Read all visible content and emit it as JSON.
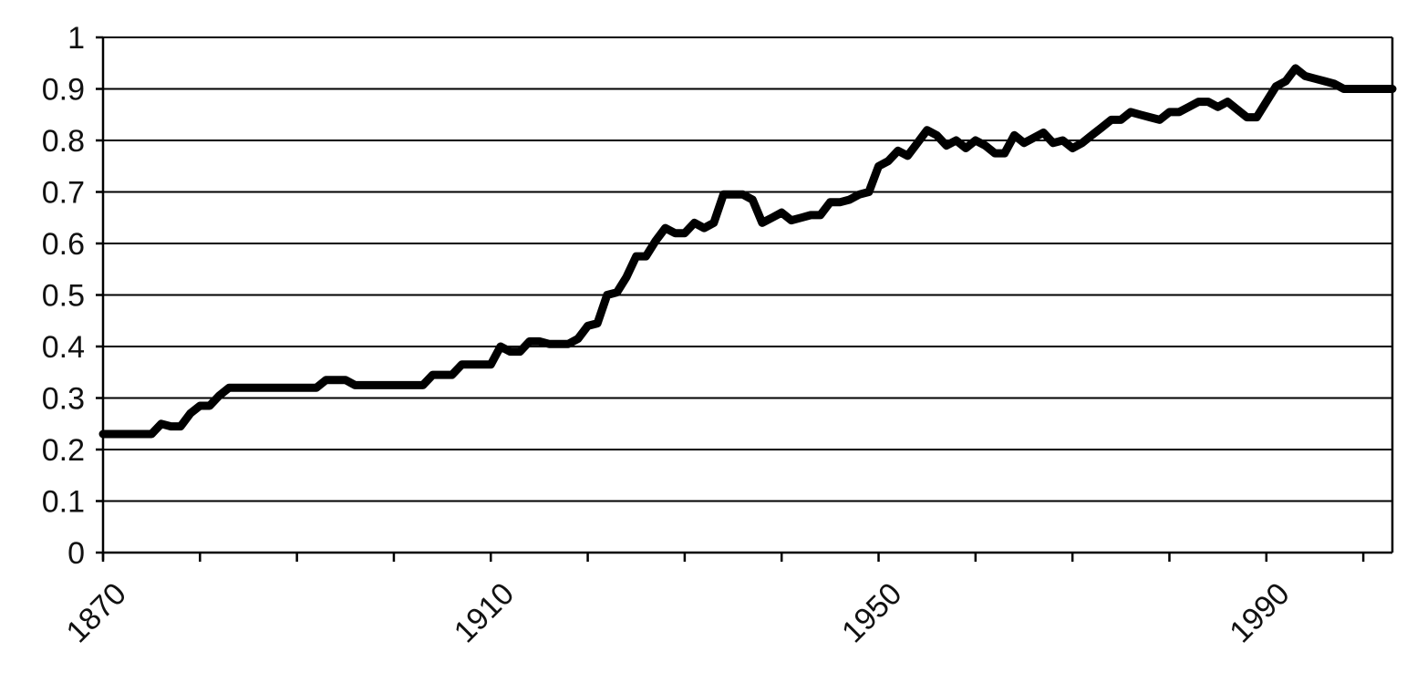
{
  "chart_data": {
    "type": "line",
    "title": "",
    "xlabel": "",
    "ylabel": "",
    "xlim": [
      1870,
      2003
    ],
    "ylim": [
      0,
      1
    ],
    "y_ticks": [
      0,
      0.1,
      0.2,
      0.3,
      0.4,
      0.5,
      0.6,
      0.7,
      0.8,
      0.9,
      1
    ],
    "y_tick_labels": [
      "0",
      "0.1",
      "0.2",
      "0.3",
      "0.4",
      "0.5",
      "0.6",
      "0.7",
      "0.8",
      "0.9",
      "1"
    ],
    "x_ticks": [
      1870,
      1880,
      1890,
      1900,
      1910,
      1920,
      1930,
      1940,
      1950,
      1960,
      1970,
      1980,
      1990,
      2000
    ],
    "x_tick_labels": [
      {
        "x": 1870,
        "label": "1870"
      },
      {
        "x": 1910,
        "label": "1910"
      },
      {
        "x": 1950,
        "label": "1950"
      },
      {
        "x": 1990,
        "label": "1990"
      }
    ],
    "grid": "horizontal",
    "legend": "none",
    "line_color": "#000000",
    "series": [
      {
        "x": [
          1870,
          1875,
          1876,
          1877,
          1878,
          1879,
          1880,
          1881,
          1882,
          1883,
          1884,
          1885,
          1886,
          1887,
          1888,
          1889,
          1890,
          1891,
          1892,
          1893,
          1894,
          1895,
          1896,
          1897,
          1898,
          1899,
          1900,
          1901,
          1902,
          1903,
          1904,
          1905,
          1906,
          1907,
          1908,
          1909,
          1910,
          1911,
          1912,
          1913,
          1914,
          1915,
          1916,
          1917,
          1918,
          1919,
          1920,
          1921,
          1922,
          1923,
          1924,
          1925,
          1926,
          1927,
          1928,
          1929,
          1930,
          1931,
          1932,
          1933,
          1934,
          1935,
          1936,
          1937,
          1938,
          1939,
          1940,
          1941,
          1942,
          1943,
          1944,
          1945,
          1946,
          1947,
          1948,
          1949,
          1950,
          1951,
          1952,
          1953,
          1954,
          1955,
          1956,
          1957,
          1958,
          1959,
          1960,
          1961,
          1962,
          1963,
          1964,
          1965,
          1966,
          1967,
          1968,
          1969,
          1970,
          1971,
          1972,
          1973,
          1974,
          1975,
          1976,
          1977,
          1978,
          1979,
          1980,
          1981,
          1982,
          1983,
          1984,
          1985,
          1986,
          1987,
          1988,
          1989,
          1990,
          1991,
          1992,
          1993,
          1994,
          1995,
          1996,
          1997,
          1998,
          1999,
          2000,
          2001,
          2002,
          2003
        ],
        "values": [
          0.23,
          0.23,
          0.25,
          0.245,
          0.245,
          0.27,
          0.285,
          0.285,
          0.305,
          0.32,
          0.32,
          0.32,
          0.32,
          0.32,
          0.32,
          0.32,
          0.32,
          0.32,
          0.32,
          0.335,
          0.335,
          0.335,
          0.325,
          0.325,
          0.325,
          0.325,
          0.325,
          0.325,
          0.325,
          0.325,
          0.345,
          0.345,
          0.345,
          0.365,
          0.365,
          0.365,
          0.365,
          0.4,
          0.39,
          0.39,
          0.41,
          0.41,
          0.405,
          0.405,
          0.405,
          0.415,
          0.44,
          0.445,
          0.5,
          0.505,
          0.535,
          0.575,
          0.575,
          0.605,
          0.63,
          0.62,
          0.62,
          0.64,
          0.63,
          0.64,
          0.695,
          0.695,
          0.695,
          0.685,
          0.64,
          0.65,
          0.66,
          0.645,
          0.65,
          0.655,
          0.655,
          0.68,
          0.68,
          0.685,
          0.695,
          0.7,
          0.75,
          0.76,
          0.78,
          0.77,
          0.795,
          0.82,
          0.81,
          0.79,
          0.8,
          0.785,
          0.8,
          0.79,
          0.775,
          0.775,
          0.81,
          0.795,
          0.805,
          0.815,
          0.795,
          0.8,
          0.785,
          0.795,
          0.81,
          0.825,
          0.84,
          0.84,
          0.855,
          0.85,
          0.845,
          0.84,
          0.855,
          0.855,
          0.865,
          0.875,
          0.875,
          0.865,
          0.875,
          0.86,
          0.845,
          0.845,
          0.875,
          0.905,
          0.915,
          0.94,
          0.925,
          0.92,
          0.915,
          0.91,
          0.9,
          0.9,
          0.9,
          0.9,
          0.9,
          0.9
        ]
      }
    ]
  }
}
